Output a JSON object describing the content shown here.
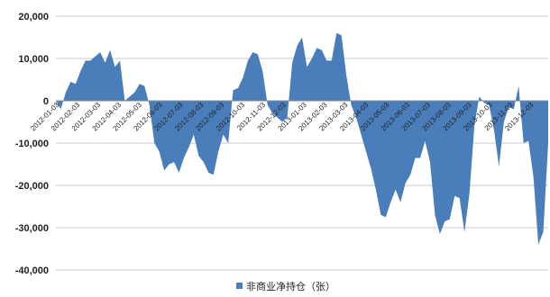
{
  "chart_data": {
    "type": "area",
    "title": "",
    "xlabel": "",
    "ylabel": "",
    "ylim": [
      -40000,
      20000
    ],
    "yticks": [
      20000,
      10000,
      0,
      -10000,
      -20000,
      -30000,
      -40000
    ],
    "ytick_labels": [
      "20,000",
      "10,000",
      "0",
      "-10,000",
      "-20,000",
      "-30,000",
      "-40,000"
    ],
    "xtick_labels": [
      "2012-01-03",
      "2012-02-03",
      "2012-03-03",
      "2012-04-03",
      "2012-05-03",
      "2012-06-03",
      "2012-07-03",
      "2012-08-03",
      "2012-09-03",
      "2012-10-03",
      "2012-11-03",
      "2012-12-03",
      "2013-01-03",
      "2013-02-03",
      "2013-03-03",
      "2013-04-03",
      "2013-05-03",
      "2013-06-03",
      "2013-07-03",
      "2013-08-03",
      "2013-09-03",
      "2013-10-03",
      "2013-11-03",
      "2013-12-03"
    ],
    "grid": true,
    "legend_position": "bottom",
    "color": "#4a7ebb",
    "series": [
      {
        "name": "非商业净持仓（张）",
        "values": [
          0,
          -2000,
          2000,
          4500,
          4000,
          7000,
          9500,
          9500,
          10500,
          11500,
          9000,
          12000,
          8000,
          9500,
          0,
          1000,
          2000,
          4000,
          3500,
          -1000,
          -10000,
          -12000,
          -16500,
          -15000,
          -14500,
          -17000,
          -13500,
          -11000,
          -8000,
          -13000,
          -14500,
          -17000,
          -17500,
          -12000,
          -8000,
          -10000,
          2500,
          3000,
          5500,
          9500,
          11500,
          11000,
          7000,
          -1000,
          -3000,
          -4000,
          -5000,
          -4000,
          9000,
          13000,
          15000,
          8000,
          10000,
          12500,
          12000,
          9500,
          9500,
          16000,
          15500,
          6000,
          -1000,
          -4000,
          -8000,
          -12000,
          -16000,
          -21000,
          -27000,
          -27500,
          -24000,
          -21000,
          -24000,
          -19500,
          -17500,
          -13500,
          -13500,
          -9500,
          -14500,
          -27000,
          -31500,
          -28500,
          -28000,
          -22500,
          -23000,
          -31000,
          -22000,
          -6000,
          1000,
          -500,
          -1000,
          -7000,
          -15500,
          -5000,
          -1500,
          -2000,
          3500,
          -10000,
          -9500,
          -18000,
          -34000,
          -31000,
          -10000
        ]
      }
    ]
  }
}
